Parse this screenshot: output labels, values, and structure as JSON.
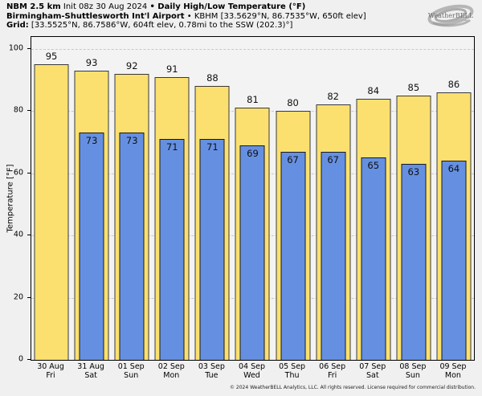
{
  "header": {
    "line1": {
      "model": "NBM 2.5 km",
      "init": " Init 08z 30 Aug 2024 ",
      "product": "• Daily High/Low Temperature (°F)"
    },
    "line2": {
      "station": "Birmingham-Shuttlesworth Int'l Airport",
      "station_meta": " • KBHM [33.5629°N, 86.7535°W, 650ft elev]"
    },
    "line3": {
      "label": "Grid:",
      "value": " [33.5525°N, 86.7586°W, 604ft elev, 0.78mi to the SSW (202.3)°]"
    }
  },
  "logo": {
    "name": "WeatherBELL"
  },
  "chart_data": {
    "type": "bar",
    "title": "Daily High/Low Temperature (°F)",
    "categories_date": [
      "30 Aug",
      "31 Aug",
      "01 Sep",
      "02 Sep",
      "03 Sep",
      "04 Sep",
      "05 Sep",
      "06 Sep",
      "07 Sep",
      "08 Sep",
      "09 Sep"
    ],
    "categories_day": [
      "Fri",
      "Sat",
      "Sun",
      "Mon",
      "Tue",
      "Wed",
      "Thu",
      "Fri",
      "Sat",
      "Sun",
      "Mon"
    ],
    "series": [
      {
        "name": "High",
        "color": "#FBE06F",
        "values": [
          95,
          93,
          92,
          91,
          88,
          81,
          80,
          82,
          84,
          85,
          86
        ]
      },
      {
        "name": "Low",
        "color": "#6590E2",
        "values": [
          null,
          73,
          73,
          71,
          71,
          69,
          67,
          67,
          65,
          63,
          64
        ]
      }
    ],
    "ylabel": "Temperature [°F]",
    "yticks": [
      0,
      20,
      40,
      60,
      80,
      100
    ],
    "ylim": [
      0,
      103.8
    ],
    "grid": "dashed-horizontal",
    "legend": "none"
  },
  "footer": {
    "copyright": "© 2024 WeatherBELL Analytics, LLC. All rights reserved. License required for commercial distribution."
  }
}
